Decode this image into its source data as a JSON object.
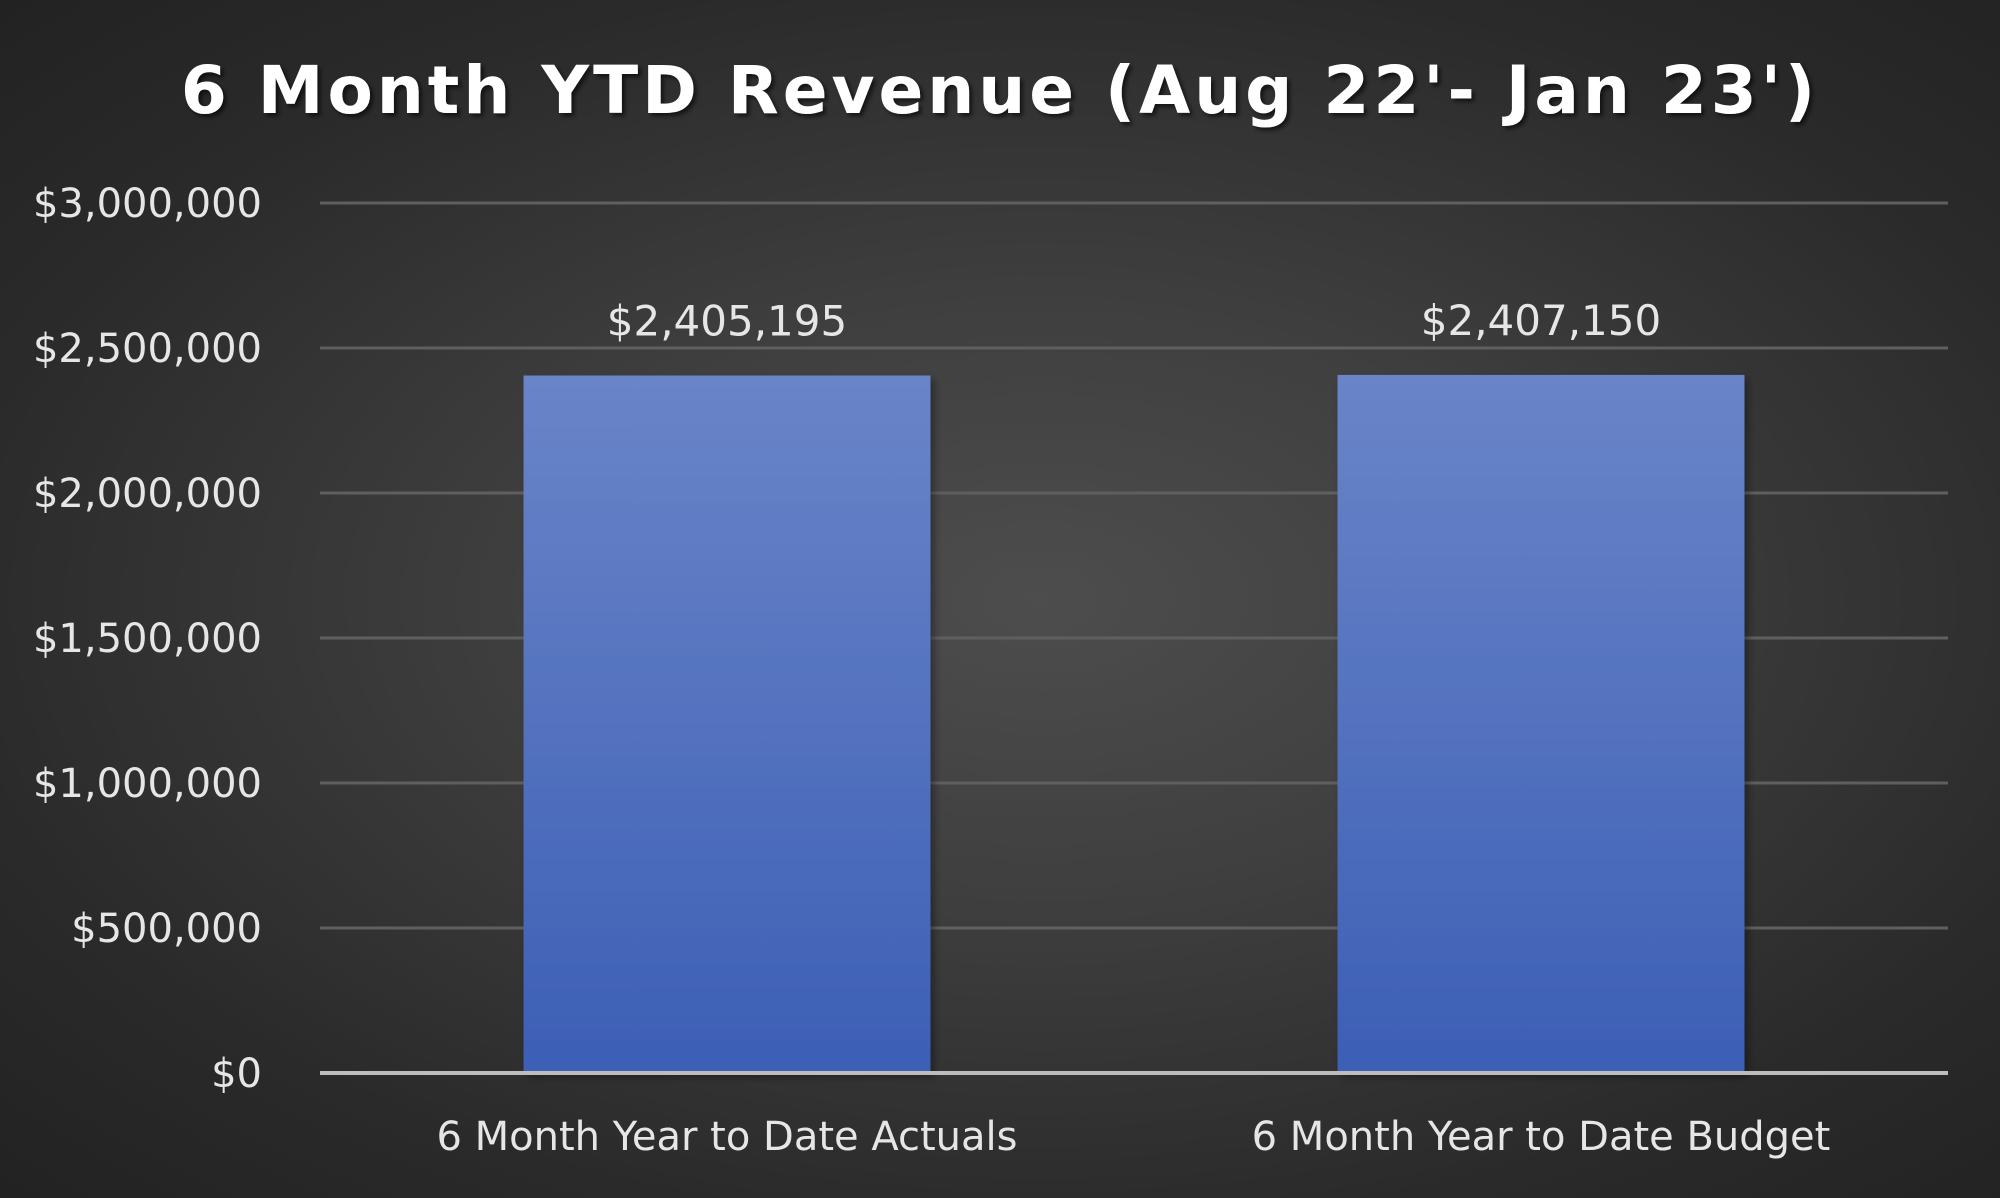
{
  "chart_data": {
    "type": "bar",
    "title": "6 Month YTD Revenue (Aug 22'- Jan 23')",
    "xlabel": "",
    "ylabel": "",
    "categories": [
      "6 Month Year to Date Actuals",
      "6 Month Year to Date Budget"
    ],
    "values": [
      2405195,
      2407150
    ],
    "data_labels": [
      "$2,405,195",
      "$2,407,150"
    ],
    "ylim": [
      0,
      3000000
    ],
    "yticks": [
      0,
      500000,
      1000000,
      1500000,
      2000000,
      2500000,
      3000000
    ],
    "ytick_labels": [
      "$0",
      "$500,000",
      "$1,000,000",
      "$1,500,000",
      "$2,000,000",
      "$2,500,000",
      "$3,000,000"
    ],
    "grid": true,
    "legend": "none",
    "colors": {
      "bar_top": "#6a84c8",
      "bar_bottom": "#3c5fb5",
      "text": "#e6e6e6",
      "title": "#ffffff"
    }
  }
}
